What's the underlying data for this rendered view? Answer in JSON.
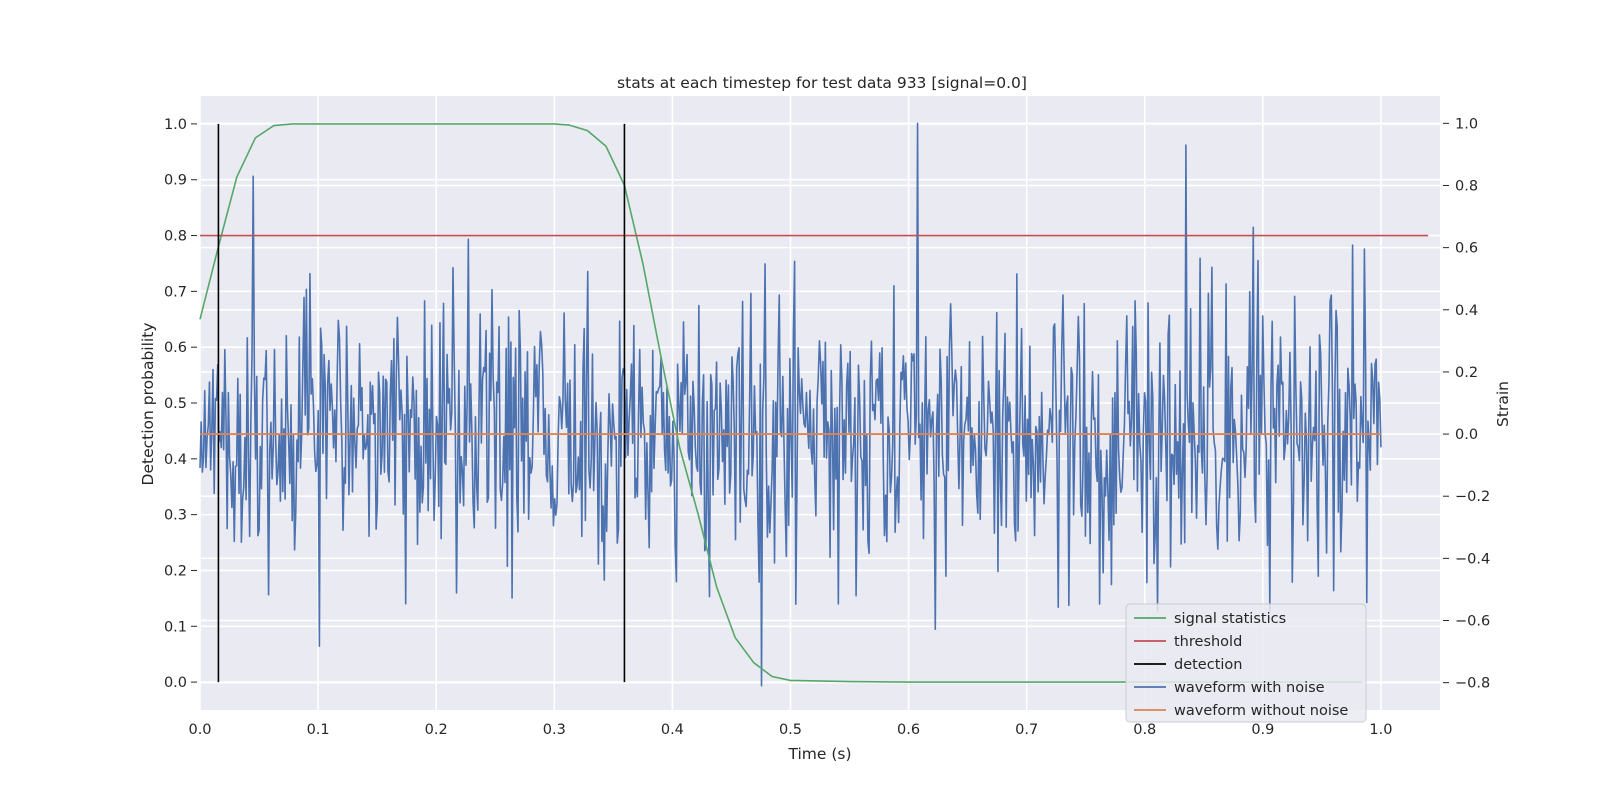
{
  "chart_data": {
    "type": "line",
    "title": "stats at each timestep for test data 933 [signal=0.0]",
    "xlabel": "Time (s)",
    "ylabel": "Detection probability",
    "ylabel_right": "Strain",
    "xlim": [
      0.0,
      1.05
    ],
    "ylim": [
      -0.05,
      1.05
    ],
    "ylim_right": [
      -0.888,
      1.088
    ],
    "x_ticks": [
      "0.0",
      "0.1",
      "0.2",
      "0.3",
      "0.4",
      "0.5",
      "0.6",
      "0.7",
      "0.8",
      "0.9",
      "1.0"
    ],
    "y_ticks": [
      "0.0",
      "0.1",
      "0.2",
      "0.3",
      "0.4",
      "0.5",
      "0.6",
      "0.7",
      "0.8",
      "0.9",
      "1.0"
    ],
    "y_ticks_right": [
      "−0.8",
      "−0.6",
      "−0.4",
      "−0.2",
      "0.0",
      "0.2",
      "0.4",
      "0.6",
      "0.8",
      "1.0"
    ],
    "grid": true,
    "legend_position": "lower-right",
    "colors": {
      "signal_statistics": "#55a868",
      "threshold": "#c44e52",
      "detection": "#000000",
      "waveform_with_noise": "#4c72b0",
      "waveform_without_noise": "#dd8452",
      "background": "#eaeaf2",
      "grid": "#ffffff"
    },
    "series": [
      {
        "name": "signal statistics",
        "axis": "left",
        "x": [
          0.0,
          0.0156,
          0.0312,
          0.0469,
          0.0625,
          0.0781,
          0.1,
          0.2,
          0.3,
          0.3125,
          0.3281,
          0.3438,
          0.3594,
          0.375,
          0.3906,
          0.4062,
          0.4219,
          0.4375,
          0.4531,
          0.4688,
          0.4844,
          0.5,
          0.55,
          0.6,
          0.7,
          0.8,
          0.9,
          0.9844
        ],
        "values": [
          0.65,
          0.78,
          0.905,
          0.975,
          0.997,
          1.0,
          1.0,
          1.0,
          1.0,
          0.998,
          0.988,
          0.96,
          0.89,
          0.75,
          0.58,
          0.42,
          0.3,
          0.17,
          0.08,
          0.035,
          0.01,
          0.003,
          0.001,
          0.0,
          0.0,
          0.0,
          0.0,
          0.0
        ]
      },
      {
        "name": "threshold",
        "axis": "left",
        "x": [
          0.0,
          1.04
        ],
        "values": [
          0.8,
          0.8
        ]
      },
      {
        "name": "detection",
        "axis": "left",
        "type": "vlines",
        "x": [
          0.0156,
          0.3594
        ],
        "ymin": 0.0,
        "ymax": 1.0
      },
      {
        "name": "waveform with noise",
        "axis": "right",
        "x_range": [
          0.0,
          1.0
        ],
        "samples": 1000,
        "std": 0.22,
        "peaks": [
          {
            "x": 0.045,
            "value": 0.83
          },
          {
            "x": 0.608,
            "value": 1.0
          },
          {
            "x": 0.835,
            "value": 0.93
          },
          {
            "x": 0.475,
            "value": -0.81
          }
        ]
      },
      {
        "name": "waveform without noise",
        "axis": "right",
        "x": [
          0.0,
          1.0
        ],
        "values": [
          0.0,
          0.0
        ]
      }
    ]
  }
}
